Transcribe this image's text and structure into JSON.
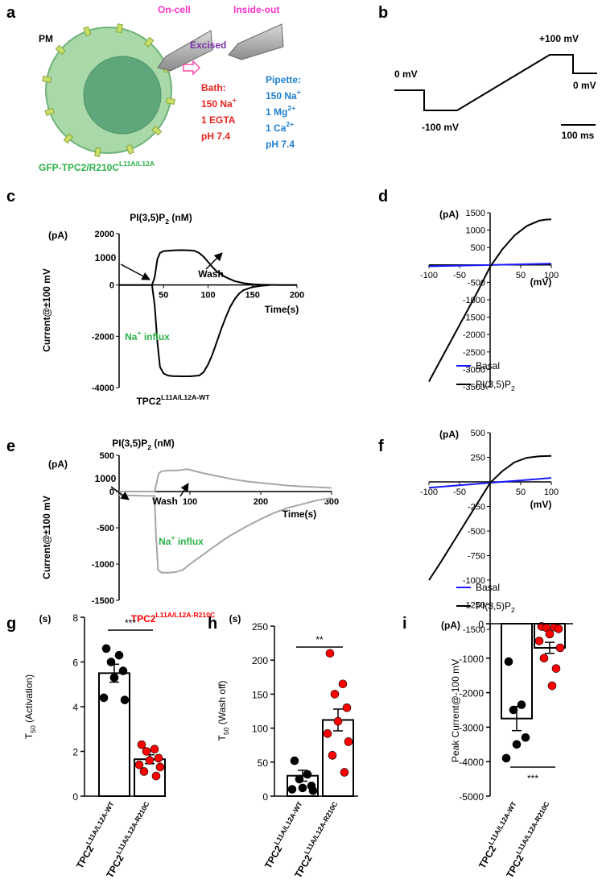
{
  "panel_labels": [
    "a",
    "b",
    "c",
    "d",
    "e",
    "f",
    "g",
    "h",
    "i"
  ],
  "diagram_a": {
    "pm": "PM",
    "on_cell": "On-cell",
    "excised": "Excised",
    "inside_out": "Inside-out",
    "bath": [
      [
        "Bath:"
      ],
      [
        "150 Na",
        {
          "sup": "+"
        }
      ],
      [
        "1 EGTA"
      ],
      [
        "pH 7.4"
      ]
    ],
    "pipette": [
      [
        "Pipette:"
      ],
      [
        "150 Na",
        {
          "sup": "+"
        }
      ],
      [
        "1 Mg",
        {
          "sup": "2+"
        }
      ],
      [
        "1 Ca",
        {
          "sup": "2+"
        }
      ],
      [
        "pH 7.4"
      ]
    ],
    "construct": [
      "GFP-TPC2/R210C",
      {
        "sup": "L11A/L12A"
      }
    ]
  },
  "protocol_b": {
    "v0": "0 mV",
    "vneg": "-100 mV",
    "vpos": "+100 mV",
    "v0_end": "0 mV",
    "scale": "100 ms"
  },
  "chart_data": [
    {
      "type": "line",
      "y_unit": "(pA)",
      "y_label": "Current@±100 mV",
      "x_label": "Time(s)",
      "annotations": [
        {
          "text": [
            "PI(3,5)P",
            {
              "sub": "2"
            },
            " (nM)"
          ],
          "color": "#000000"
        },
        {
          "text": [
            "1000"
          ],
          "color": "#000000"
        },
        {
          "text": [
            "Wash"
          ],
          "color": "#000000"
        },
        {
          "text": [
            "Na",
            {
              "sup": "+"
            },
            " influx"
          ],
          "color": "#2db34a"
        }
      ],
      "caption": [
        "TPC2",
        {
          "sup": "L11A/L12A-WT"
        }
      ],
      "caption_color": "#000000",
      "xlim": [
        0,
        200
      ],
      "ylim": [
        -4000,
        2000
      ],
      "xticks": [
        50,
        100,
        150,
        200
      ],
      "yticks": [
        -4000,
        -2000,
        0,
        2000
      ],
      "series": [
        {
          "color": "#000000",
          "x": [
            0,
            20,
            37,
            40,
            43,
            46,
            50,
            60,
            70,
            80,
            85,
            90,
            95,
            100,
            105,
            110,
            120,
            130,
            140,
            150,
            160,
            180,
            200
          ],
          "values": [
            0,
            0,
            0,
            300,
            1000,
            1250,
            1320,
            1350,
            1360,
            1350,
            1330,
            1250,
            1100,
            900,
            700,
            520,
            300,
            150,
            70,
            30,
            10,
            0,
            0
          ]
        },
        {
          "color": "#000000",
          "x": [
            37,
            40,
            43,
            46,
            50,
            55,
            60,
            70,
            80,
            90,
            95,
            100,
            105,
            110,
            115,
            120,
            125,
            130,
            135,
            140,
            150,
            160,
            170
          ],
          "values": [
            0,
            -800,
            -2200,
            -3200,
            -3450,
            -3530,
            -3550,
            -3560,
            -3560,
            -3530,
            -3400,
            -3100,
            -2700,
            -2200,
            -1700,
            -1250,
            -850,
            -550,
            -330,
            -200,
            -80,
            -30,
            0
          ]
        }
      ]
    },
    {
      "type": "line",
      "y_unit": "(pA)",
      "x_label": "(mV)",
      "xlim": [
        -100,
        100
      ],
      "ylim": [
        -3500,
        1500
      ],
      "xticks": [
        -100,
        -50,
        50,
        100
      ],
      "yticks": [
        -3500,
        -3000,
        -2500,
        -2000,
        -1500,
        -1000,
        -500,
        500,
        1000,
        1500
      ],
      "series": [
        {
          "name": [
            "Basal"
          ],
          "color": "#1a1aff",
          "x": [
            -100,
            100
          ],
          "values": [
            -40,
            40
          ]
        },
        {
          "name": [
            "PI(3,5)P",
            {
              "sub": "2"
            }
          ],
          "color": "#000000",
          "x": [
            -100,
            -80,
            -60,
            -40,
            -20,
            0,
            20,
            40,
            60,
            80,
            90,
            100
          ],
          "values": [
            -3350,
            -2700,
            -2050,
            -1400,
            -750,
            -50,
            450,
            850,
            1120,
            1270,
            1300,
            1310
          ]
        }
      ]
    },
    {
      "type": "line",
      "y_unit": "(pA)",
      "y_label": "Current@±100 mV",
      "x_label": "Time(s)",
      "annotations": [
        {
          "text": [
            "PI(3,5)P",
            {
              "sub": "2"
            },
            " (nM)"
          ],
          "color": "#000000"
        },
        {
          "text": [
            "1000"
          ],
          "color": "#000000"
        },
        {
          "text": [
            "Wash"
          ],
          "color": "#000000"
        },
        {
          "text": [
            "Na",
            {
              "sup": "+"
            },
            " influx"
          ],
          "color": "#2db34a"
        }
      ],
      "caption": [
        "TPC2",
        {
          "sup": "L11A/L12A-R210C"
        }
      ],
      "caption_color": "#ff0000",
      "xlim": [
        0,
        300
      ],
      "ylim": [
        -1500,
        500
      ],
      "xticks": [
        100,
        200,
        300
      ],
      "yticks": [
        -1500,
        -1000,
        -500,
        0,
        500
      ],
      "series": [
        {
          "color": "#a6a6a6",
          "x": [
            0,
            40,
            50,
            53,
            56,
            60,
            70,
            80,
            90,
            95,
            100,
            120,
            140,
            160,
            180,
            200,
            220,
            240,
            260,
            280,
            300
          ],
          "values": [
            0,
            0,
            0,
            120,
            250,
            280,
            290,
            290,
            300,
            310,
            300,
            250,
            210,
            170,
            140,
            120,
            100,
            80,
            70,
            60,
            50
          ]
        },
        {
          "color": "#a6a6a6",
          "x": [
            0,
            40,
            50,
            52,
            55,
            60,
            70,
            80,
            90,
            100,
            110,
            120,
            130,
            140,
            150,
            160,
            180,
            200,
            220,
            240,
            260,
            280,
            300
          ],
          "values": [
            -50,
            -60,
            -60,
            -600,
            -1080,
            -1120,
            -1120,
            -1110,
            -1080,
            -1000,
            -930,
            -860,
            -790,
            -720,
            -650,
            -590,
            -480,
            -380,
            -290,
            -220,
            -170,
            -120,
            -90
          ]
        }
      ]
    },
    {
      "type": "line",
      "y_unit": "(pA)",
      "x_label": "(mV)",
      "xlim": [
        -100,
        100
      ],
      "ylim": [
        -1500,
        500
      ],
      "xticks": [
        -100,
        -50,
        50,
        100
      ],
      "yticks": [
        -1500,
        -1250,
        -1000,
        -750,
        -500,
        -250,
        250,
        500
      ],
      "series": [
        {
          "name": [
            "Basal"
          ],
          "color": "#1a1aff",
          "x": [
            -100,
            100
          ],
          "values": [
            -60,
            40
          ]
        },
        {
          "name": [
            "PI(3,5)P",
            {
              "sub": "2"
            }
          ],
          "color": "#000000",
          "x": [
            -100,
            -80,
            -60,
            -40,
            -20,
            0,
            20,
            40,
            60,
            80,
            90,
            100
          ],
          "values": [
            -1000,
            -810,
            -610,
            -410,
            -210,
            -10,
            110,
            200,
            245,
            260,
            262,
            265
          ]
        }
      ]
    },
    {
      "type": "bar",
      "y_unit": "(s)",
      "y_label": [
        "T",
        {
          "sub": "50"
        },
        " (Activation)"
      ],
      "significance": "***",
      "categories": [
        [
          "TPC2",
          {
            "sup": "L11A/L12A-WT"
          }
        ],
        [
          "TPC2",
          {
            "sup": "L11A/L12A-R210C"
          }
        ]
      ],
      "values": [
        5.5,
        1.65
      ],
      "errors": [
        0.4,
        0.2
      ],
      "point_colors": [
        "#000000",
        "#ff0000"
      ],
      "points": [
        [
          6.6,
          6.3,
          6.0,
          5.6,
          5.3,
          4.4,
          4.3
        ],
        [
          2.3,
          2.1,
          2.0,
          1.7,
          1.6,
          1.4,
          1.3,
          1.1,
          0.9
        ]
      ],
      "ylim": [
        0,
        8
      ],
      "yticks": [
        0,
        2,
        4,
        6,
        8
      ]
    },
    {
      "type": "bar",
      "y_unit": "(s)",
      "y_label": [
        "T",
        {
          "sub": "50"
        },
        " (Wash off)"
      ],
      "significance": "**",
      "categories": [
        [
          "TPC2",
          {
            "sup": "L11A/L12A-WT"
          }
        ],
        [
          "TPC2",
          {
            "sup": "L11A/L12A-R210C"
          }
        ]
      ],
      "values": [
        30,
        112
      ],
      "errors": [
        8,
        16
      ],
      "point_colors": [
        "#000000",
        "#ff0000"
      ],
      "points": [
        [
          52,
          32,
          25,
          15,
          12,
          10,
          8
        ],
        [
          210,
          165,
          150,
          130,
          110,
          92,
          80,
          60,
          35
        ]
      ],
      "ylim": [
        0,
        250
      ],
      "yticks": [
        0,
        50,
        100,
        150,
        200,
        250
      ]
    },
    {
      "type": "bar",
      "y_unit": "(pA)",
      "y_label": [
        "Peak Current@-100 mV"
      ],
      "significance": "***",
      "categories": [
        [
          "TPC2",
          {
            "sup": "L11A/L12A-WT"
          }
        ],
        [
          "TPC2",
          {
            "sup": "L11A/L12A-R210C"
          }
        ]
      ],
      "values": [
        -2750,
        -700
      ],
      "errors": [
        350,
        160
      ],
      "point_colors": [
        "#000000",
        "#ff0000"
      ],
      "points": [
        [
          -1100,
          -2350,
          -2500,
          -3300,
          -3500,
          -3900
        ],
        [
          -80,
          -100,
          -120,
          -150,
          -300,
          -500,
          -700,
          -1000,
          -1300,
          -1800
        ]
      ],
      "ylim": [
        -5000,
        0
      ],
      "yticks": [
        -5000,
        -4000,
        -3000,
        -2000,
        -1000,
        0
      ]
    }
  ]
}
